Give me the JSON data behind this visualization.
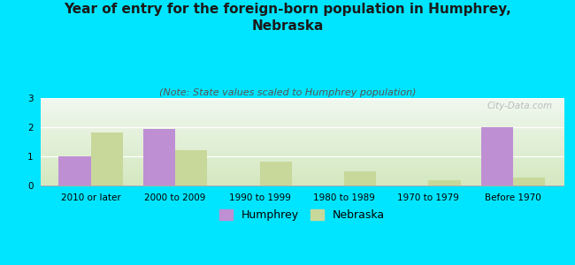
{
  "title": "Year of entry for the foreign-born population in Humphrey,\nNebraska",
  "subtitle": "(Note: State values scaled to Humphrey population)",
  "categories": [
    "2010 or later",
    "2000 to 2009",
    "1990 to 1999",
    "1980 to 1989",
    "1970 to 1979",
    "Before 1970"
  ],
  "humphrey_values": [
    1.0,
    1.95,
    0.0,
    0.0,
    0.0,
    2.0
  ],
  "nebraska_values": [
    1.82,
    1.22,
    0.82,
    0.5,
    0.18,
    0.27
  ],
  "humphrey_color": "#bf8fd4",
  "nebraska_color": "#c8d89a",
  "background_color": "#00e5ff",
  "plot_bg_top": "#f0f8f0",
  "plot_bg_bottom": "#d4e8c0",
  "ylim": [
    0,
    3
  ],
  "yticks": [
    0,
    1,
    2,
    3
  ],
  "bar_width": 0.38,
  "title_fontsize": 11,
  "subtitle_fontsize": 8,
  "tick_fontsize": 7.5,
  "legend_fontsize": 9,
  "watermark": "City-Data.com"
}
